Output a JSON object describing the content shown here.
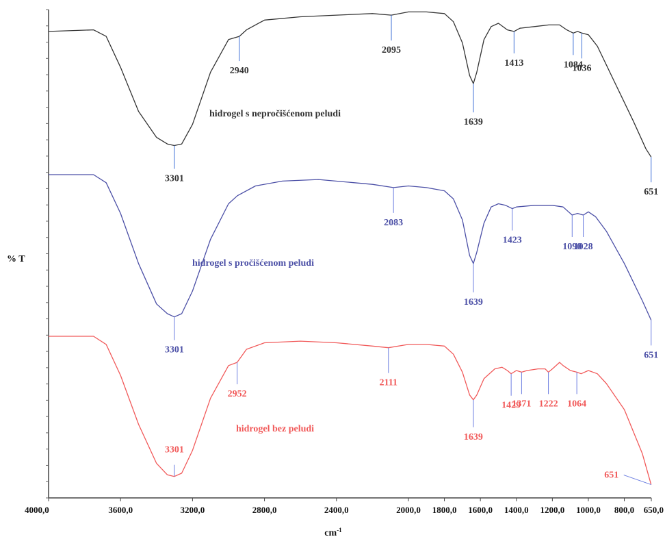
{
  "chart_data": {
    "type": "line",
    "xlabel": "cm",
    "xlabel_sup": "-1",
    "ylabel": "% T",
    "xlim": [
      4000,
      650
    ],
    "x_reversed": true,
    "grid": false,
    "x_ticks": [
      4000,
      3600,
      3200,
      2800,
      2400,
      2000,
      1800,
      1600,
      1400,
      1200,
      1000,
      800,
      650
    ],
    "x_tick_labels": [
      "4000,0",
      "3600,0",
      "3200,0",
      "2800,0",
      "2400,0",
      "2000,0",
      "1800,0",
      "1600,0",
      "1400,0",
      "1200,0",
      "1000,0",
      "800,0",
      "650,0"
    ],
    "series": [
      {
        "name": "hidrogel s nepročišćenom peludi",
        "color": "#333333",
        "ylim": [
          0,
          100
        ],
        "points": [
          [
            4000,
            87
          ],
          [
            3750,
            88
          ],
          [
            3680,
            84
          ],
          [
            3600,
            65
          ],
          [
            3500,
            38
          ],
          [
            3400,
            22
          ],
          [
            3340,
            18
          ],
          [
            3301,
            17
          ],
          [
            3260,
            18
          ],
          [
            3200,
            30
          ],
          [
            3100,
            62
          ],
          [
            3000,
            82
          ],
          [
            2940,
            84
          ],
          [
            2900,
            88
          ],
          [
            2800,
            94
          ],
          [
            2600,
            96
          ],
          [
            2400,
            97
          ],
          [
            2200,
            98
          ],
          [
            2095,
            97
          ],
          [
            2000,
            99
          ],
          [
            1900,
            99
          ],
          [
            1800,
            98
          ],
          [
            1750,
            93
          ],
          [
            1700,
            80
          ],
          [
            1660,
            60
          ],
          [
            1639,
            55
          ],
          [
            1620,
            62
          ],
          [
            1580,
            82
          ],
          [
            1540,
            90
          ],
          [
            1500,
            92
          ],
          [
            1450,
            88
          ],
          [
            1413,
            87
          ],
          [
            1380,
            89
          ],
          [
            1300,
            90
          ],
          [
            1220,
            91
          ],
          [
            1160,
            91
          ],
          [
            1120,
            88
          ],
          [
            1084,
            86
          ],
          [
            1060,
            87
          ],
          [
            1036,
            86
          ],
          [
            1000,
            85
          ],
          [
            950,
            78
          ],
          [
            850,
            55
          ],
          [
            750,
            32
          ],
          [
            680,
            15
          ],
          [
            651,
            10
          ]
        ],
        "labels": [
          {
            "x": 3301,
            "text": "3301"
          },
          {
            "x": 2940,
            "text": "2940"
          },
          {
            "x": 2095,
            "text": "2095"
          },
          {
            "x": 1639,
            "text": "1639"
          },
          {
            "x": 1413,
            "text": "1413"
          },
          {
            "x": 1084,
            "text": "1084"
          },
          {
            "x": 1036,
            "text": "1036"
          },
          {
            "x": 651,
            "text": "651"
          }
        ]
      },
      {
        "name": "hidrogel s pročišćenom peludi",
        "color": "#4b4fa6",
        "ylim": [
          0,
          100
        ],
        "points": [
          [
            4000,
            100
          ],
          [
            3750,
            100
          ],
          [
            3680,
            95
          ],
          [
            3600,
            76
          ],
          [
            3500,
            45
          ],
          [
            3400,
            20
          ],
          [
            3340,
            14
          ],
          [
            3301,
            12
          ],
          [
            3260,
            14
          ],
          [
            3200,
            28
          ],
          [
            3100,
            60
          ],
          [
            3000,
            82
          ],
          [
            2950,
            87
          ],
          [
            2850,
            93
          ],
          [
            2700,
            96
          ],
          [
            2500,
            97
          ],
          [
            2300,
            95
          ],
          [
            2200,
            94
          ],
          [
            2083,
            92
          ],
          [
            2000,
            93
          ],
          [
            1900,
            92
          ],
          [
            1800,
            90
          ],
          [
            1750,
            85
          ],
          [
            1700,
            72
          ],
          [
            1660,
            50
          ],
          [
            1639,
            45
          ],
          [
            1620,
            52
          ],
          [
            1580,
            70
          ],
          [
            1540,
            80
          ],
          [
            1500,
            82
          ],
          [
            1460,
            81
          ],
          [
            1423,
            79
          ],
          [
            1400,
            80
          ],
          [
            1300,
            81
          ],
          [
            1200,
            81
          ],
          [
            1140,
            80
          ],
          [
            1110,
            77
          ],
          [
            1090,
            75
          ],
          [
            1060,
            76
          ],
          [
            1028,
            75
          ],
          [
            1000,
            77
          ],
          [
            960,
            74
          ],
          [
            900,
            65
          ],
          [
            800,
            45
          ],
          [
            700,
            22
          ],
          [
            651,
            10
          ]
        ],
        "labels": [
          {
            "x": 3301,
            "text": "3301"
          },
          {
            "x": 2083,
            "text": "2083"
          },
          {
            "x": 1639,
            "text": "1639"
          },
          {
            "x": 1423,
            "text": "1423"
          },
          {
            "x": 1090,
            "text": "1090"
          },
          {
            "x": 1028,
            "text": "1028"
          },
          {
            "x": 651,
            "text": "651"
          }
        ]
      },
      {
        "name": "hidrogel bez peludi",
        "color": "#f15a5a",
        "ylim": [
          0,
          100
        ],
        "points": [
          [
            4000,
            100
          ],
          [
            3750,
            100
          ],
          [
            3680,
            95
          ],
          [
            3600,
            76
          ],
          [
            3500,
            46
          ],
          [
            3400,
            22
          ],
          [
            3340,
            15
          ],
          [
            3301,
            14
          ],
          [
            3260,
            16
          ],
          [
            3200,
            30
          ],
          [
            3100,
            62
          ],
          [
            3000,
            82
          ],
          [
            2952,
            84
          ],
          [
            2900,
            92
          ],
          [
            2800,
            96
          ],
          [
            2600,
            97
          ],
          [
            2400,
            96
          ],
          [
            2200,
            94
          ],
          [
            2111,
            93
          ],
          [
            2000,
            95
          ],
          [
            1900,
            95
          ],
          [
            1800,
            94
          ],
          [
            1750,
            89
          ],
          [
            1700,
            78
          ],
          [
            1660,
            64
          ],
          [
            1639,
            61
          ],
          [
            1620,
            64
          ],
          [
            1580,
            74
          ],
          [
            1520,
            80
          ],
          [
            1480,
            81
          ],
          [
            1450,
            79
          ],
          [
            1429,
            77
          ],
          [
            1400,
            79
          ],
          [
            1371,
            78
          ],
          [
            1340,
            79
          ],
          [
            1280,
            80
          ],
          [
            1240,
            80
          ],
          [
            1222,
            78
          ],
          [
            1200,
            80
          ],
          [
            1160,
            84
          ],
          [
            1140,
            82
          ],
          [
            1100,
            79
          ],
          [
            1064,
            78
          ],
          [
            1040,
            77
          ],
          [
            1000,
            79
          ],
          [
            950,
            77
          ],
          [
            900,
            71
          ],
          [
            800,
            55
          ],
          [
            700,
            28
          ],
          [
            651,
            9
          ]
        ],
        "labels": [
          {
            "x": 3301,
            "text": "3301"
          },
          {
            "x": 2952,
            "text": "2952"
          },
          {
            "x": 2111,
            "text": "2111"
          },
          {
            "x": 1639,
            "text": "1639"
          },
          {
            "x": 1429,
            "text": "1429"
          },
          {
            "x": 1371,
            "text": "1371"
          },
          {
            "x": 1222,
            "text": "1222"
          },
          {
            "x": 1064,
            "text": "1064"
          },
          {
            "x": 651,
            "text": "651"
          }
        ]
      }
    ]
  }
}
